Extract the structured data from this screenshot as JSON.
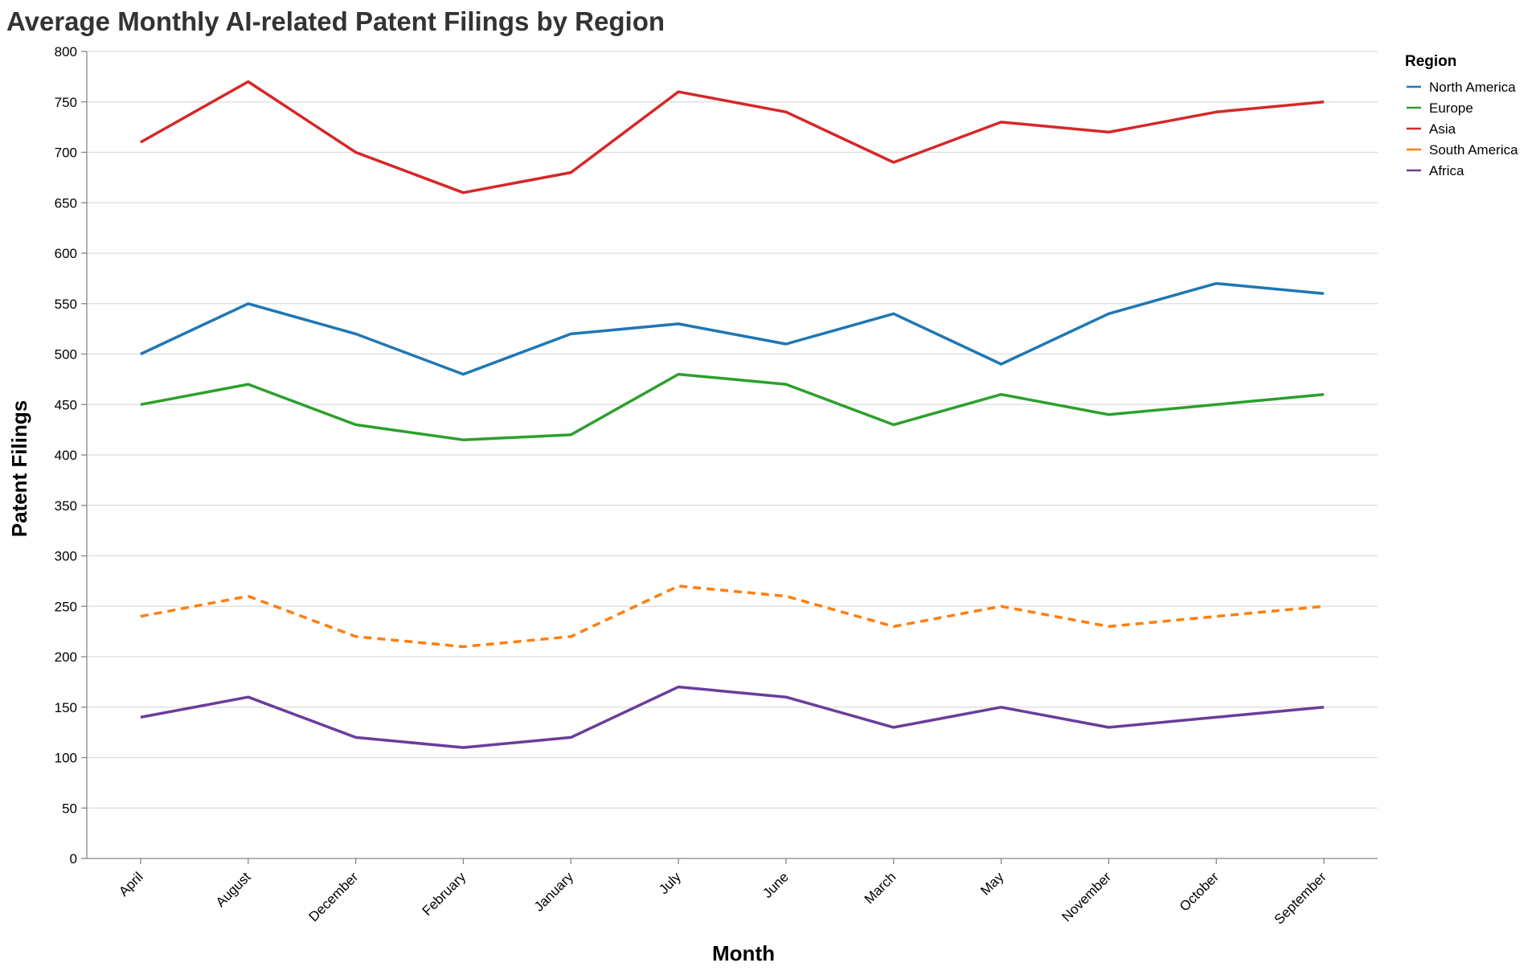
{
  "chart_data": {
    "type": "line",
    "title": "Average Monthly AI-related Patent Filings by Region",
    "xlabel": "Month",
    "ylabel": "Patent Filings",
    "categories": [
      "April",
      "August",
      "December",
      "February",
      "January",
      "July",
      "June",
      "March",
      "May",
      "November",
      "October",
      "September"
    ],
    "ylim": [
      0,
      800
    ],
    "yticks": [
      0,
      50,
      100,
      150,
      200,
      250,
      300,
      350,
      400,
      450,
      500,
      550,
      600,
      650,
      700,
      750,
      800
    ],
    "grid": true,
    "legend": {
      "title": "Region",
      "position": "top-right"
    },
    "series": [
      {
        "name": "North America",
        "color": "#1f77b4",
        "dashed": false,
        "values": [
          500,
          550,
          520,
          480,
          520,
          530,
          510,
          540,
          490,
          540,
          570,
          560
        ]
      },
      {
        "name": "Europe",
        "color": "#2ca02c",
        "dashed": false,
        "values": [
          450,
          470,
          430,
          415,
          420,
          480,
          470,
          430,
          460,
          440,
          450,
          460
        ]
      },
      {
        "name": "Asia",
        "color": "#d62728",
        "dashed": false,
        "values": [
          710,
          770,
          700,
          660,
          680,
          760,
          740,
          690,
          730,
          720,
          740,
          750
        ]
      },
      {
        "name": "South America",
        "color": "#ff7f0e",
        "dashed": true,
        "values": [
          240,
          260,
          220,
          210,
          220,
          270,
          260,
          230,
          250,
          230,
          240,
          250
        ]
      },
      {
        "name": "Africa",
        "color": "#6a3d9a",
        "dashed": false,
        "values": [
          140,
          160,
          120,
          110,
          120,
          170,
          160,
          130,
          150,
          130,
          140,
          150
        ]
      }
    ]
  }
}
